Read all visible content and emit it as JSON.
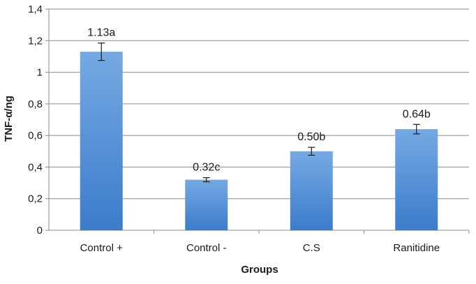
{
  "chart_data": {
    "type": "bar",
    "title": "",
    "xlabel": "Groups",
    "ylabel": "TNF-α/ng",
    "ylim": [
      0,
      1.4
    ],
    "yticks": [
      "0",
      "0,2",
      "0,4",
      "0,6",
      "0,8",
      "1",
      "1,2",
      "1,4"
    ],
    "ytick_values": [
      0,
      0.2,
      0.4,
      0.6,
      0.8,
      1.0,
      1.2,
      1.4
    ],
    "categories": [
      "Control +",
      "Control -",
      "C.S",
      "Ranitidine"
    ],
    "values": [
      1.13,
      0.32,
      0.5,
      0.64
    ],
    "errors": [
      0.055,
      0.013,
      0.025,
      0.03
    ],
    "data_labels": [
      "1.13a",
      "0.32c",
      "0.50b",
      "0.64b"
    ],
    "grid": true,
    "legend": "none"
  },
  "colors": {
    "bar_top": "#76a9e3",
    "bar_bottom": "#3b7ccb",
    "grid": "#8c8c8c",
    "axis": "#8c8c8c",
    "error_bar": "#1a1a1a"
  }
}
